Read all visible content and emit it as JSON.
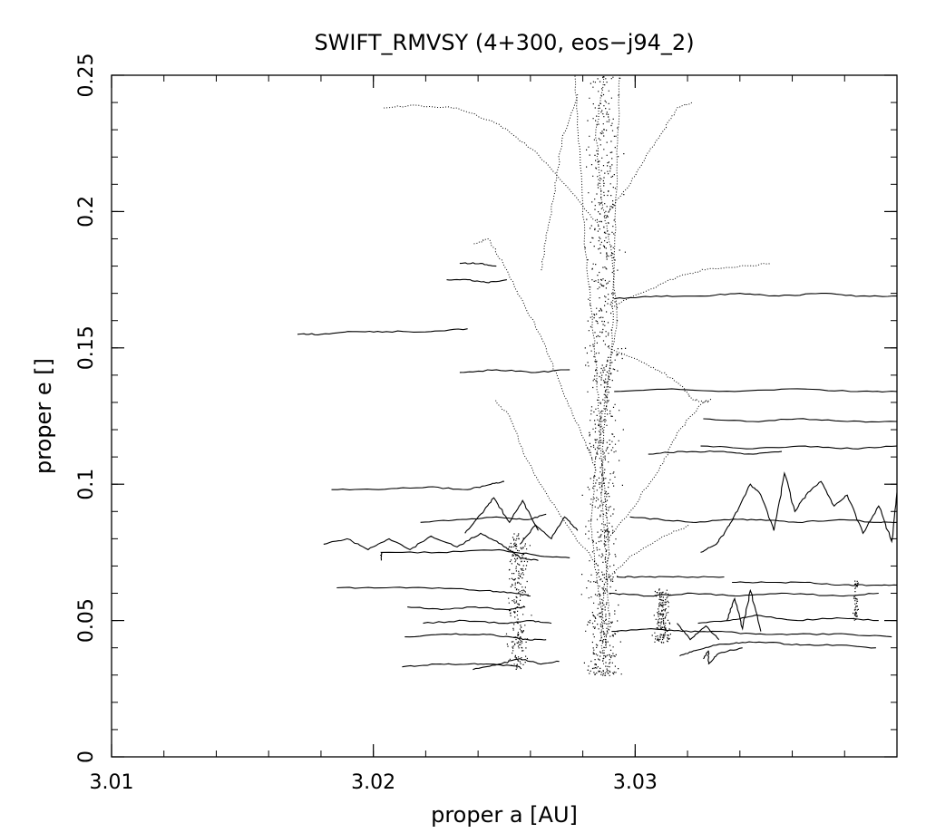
{
  "chart_data": {
    "type": "line",
    "title": "SWIFT_RMVSY (4+300, eos−j94_2)",
    "xlabel": "proper a [AU]",
    "ylabel": "proper e []",
    "xlim": [
      3.01,
      3.04
    ],
    "ylim": [
      0,
      0.25
    ],
    "x_ticks": [
      {
        "value": 3.01,
        "label": "3.01"
      },
      {
        "value": 3.02,
        "label": "3.02"
      },
      {
        "value": 3.03,
        "label": "3.03"
      }
    ],
    "y_ticks": [
      {
        "value": 0,
        "label": "0"
      },
      {
        "value": 0.05,
        "label": "0.05"
      },
      {
        "value": 0.1,
        "label": "0.1"
      },
      {
        "value": 0.15,
        "label": "0.15"
      },
      {
        "value": 0.2,
        "label": "0.2"
      },
      {
        "value": 0.25,
        "label": "0.25"
      }
    ],
    "x_minor_step": 0.002,
    "y_minor_step": 0.01,
    "grid": false,
    "legend": "none",
    "series": [
      {
        "style": "dotted",
        "x": [
          3.0288,
          3.0287,
          3.0288,
          3.029,
          3.0289,
          3.0287,
          3.0286,
          3.0284,
          3.0281,
          3.0279,
          3.0277
        ],
        "y": [
          0.034,
          0.045,
          0.06,
          0.075,
          0.09,
          0.11,
          0.13,
          0.155,
          0.185,
          0.22,
          0.25
        ]
      },
      {
        "style": "dotted",
        "x": [
          3.0288,
          3.029,
          3.0289,
          3.0287,
          3.0288,
          3.0291,
          3.0292,
          3.0293,
          3.0294
        ],
        "y": [
          0.036,
          0.05,
          0.07,
          0.095,
          0.12,
          0.15,
          0.18,
          0.215,
          0.25
        ]
      },
      {
        "style": "dotted",
        "x": [
          3.0289,
          3.0286,
          3.0283,
          3.0285,
          3.0289,
          3.0293,
          3.0291,
          3.0287,
          3.0285,
          3.0288
        ],
        "y": [
          0.04,
          0.06,
          0.085,
          0.11,
          0.135,
          0.16,
          0.185,
          0.205,
          0.23,
          0.25
        ]
      },
      {
        "style": "dotted",
        "x": [
          3.0285,
          3.0279,
          3.0272,
          3.0266,
          3.0258,
          3.025,
          3.0244,
          3.0238
        ],
        "y": [
          0.105,
          0.12,
          0.135,
          0.15,
          0.165,
          0.18,
          0.19,
          0.188
        ]
      },
      {
        "style": "dotted",
        "x": [
          3.0286,
          3.0275,
          3.0262,
          3.0248,
          3.0232,
          3.0214,
          3.0204
        ],
        "y": [
          0.195,
          0.208,
          0.222,
          0.232,
          0.238,
          0.239,
          0.238
        ]
      },
      {
        "style": "dotted",
        "x": [
          3.0291,
          3.0302,
          3.0316,
          3.0328,
          3.034,
          3.0352
        ],
        "y": [
          0.165,
          0.17,
          0.176,
          0.179,
          0.18,
          0.181
        ]
      },
      {
        "style": "dotted",
        "x": [
          3.029,
          3.0302,
          3.0312,
          3.0318,
          3.0322,
          3.0328
        ],
        "y": [
          0.15,
          0.145,
          0.14,
          0.136,
          0.131,
          0.13
        ]
      },
      {
        "style": "dotted",
        "x": [
          3.0288,
          3.0298,
          3.0309,
          3.0317,
          3.0326,
          3.0329
        ],
        "y": [
          0.078,
          0.09,
          0.105,
          0.12,
          0.13,
          0.131
        ]
      },
      {
        "style": "dotted",
        "x": [
          3.0286,
          3.0276,
          3.0267,
          3.0258,
          3.0252,
          3.0246
        ],
        "y": [
          0.07,
          0.082,
          0.095,
          0.11,
          0.125,
          0.131
        ]
      },
      {
        "style": "dotted",
        "x": [
          3.029,
          3.0298,
          3.0304,
          3.0311,
          3.0316,
          3.0322
        ],
        "y": [
          0.2,
          0.21,
          0.22,
          0.23,
          0.238,
          0.24
        ]
      },
      {
        "style": "dotted",
        "x": [
          3.0278,
          3.0272,
          3.0269,
          3.0266,
          3.0264
        ],
        "y": [
          0.243,
          0.226,
          0.206,
          0.19,
          0.178
        ]
      },
      {
        "style": "dotted",
        "x": [
          3.0289,
          3.0299,
          3.0311,
          3.0321
        ],
        "y": [
          0.065,
          0.074,
          0.081,
          0.085
        ]
      },
      {
        "style": "solid",
        "x": [
          3.0181,
          3.019,
          3.0198,
          3.0206,
          3.0214,
          3.0222,
          3.0232,
          3.0241,
          3.0249,
          3.0256,
          3.0263
        ],
        "y": [
          0.078,
          0.08,
          0.076,
          0.08,
          0.076,
          0.081,
          0.077,
          0.082,
          0.078,
          0.073,
          0.072
        ]
      },
      {
        "style": "solid",
        "x": [
          3.0203,
          3.0203,
          3.0225,
          3.0248,
          3.0262,
          3.0275
        ],
        "y": [
          0.072,
          0.075,
          0.075,
          0.076,
          0.074,
          0.073
        ]
      },
      {
        "style": "solid",
        "x": [
          3.0186,
          3.0205,
          3.0225,
          3.0243,
          3.0254,
          3.026
        ],
        "y": [
          0.062,
          0.062,
          0.062,
          0.061,
          0.06,
          0.059
        ]
      },
      {
        "style": "solid",
        "x": [
          3.0212,
          3.0228,
          3.0242,
          3.0252,
          3.0259,
          3.0266
        ],
        "y": [
          0.044,
          0.045,
          0.045,
          0.044,
          0.043,
          0.043
        ]
      },
      {
        "style": "solid",
        "x": [
          3.0211,
          3.0224,
          3.0236,
          3.0246,
          3.0256
        ],
        "y": [
          0.033,
          0.034,
          0.034,
          0.034,
          0.033
        ]
      },
      {
        "style": "solid",
        "x": [
          3.0238,
          3.0248,
          3.0256,
          3.0264,
          3.0271
        ],
        "y": [
          0.032,
          0.034,
          0.036,
          0.034,
          0.035
        ]
      },
      {
        "style": "solid",
        "x": [
          3.0219,
          3.0235,
          3.025,
          3.026,
          3.0268
        ],
        "y": [
          0.049,
          0.05,
          0.049,
          0.05,
          0.049
        ]
      },
      {
        "style": "solid",
        "x": [
          3.0213,
          3.0226,
          3.0239,
          3.0251,
          3.0258
        ],
        "y": [
          0.055,
          0.054,
          0.055,
          0.054,
          0.055
        ]
      },
      {
        "style": "solid",
        "x": [
          3.0218,
          3.0232,
          3.0247,
          3.0259,
          3.0266
        ],
        "y": [
          0.086,
          0.087,
          0.088,
          0.087,
          0.089
        ]
      },
      {
        "style": "solid",
        "x": [
          3.0184,
          3.0202,
          3.0221,
          3.0236,
          3.0245,
          3.025
        ],
        "y": [
          0.098,
          0.098,
          0.099,
          0.098,
          0.1,
          0.101
        ]
      },
      {
        "style": "solid",
        "x": [
          3.0235,
          3.0241,
          3.0246,
          3.0252,
          3.0257,
          3.0263
        ],
        "y": [
          0.082,
          0.089,
          0.095,
          0.086,
          0.094,
          0.083
        ]
      },
      {
        "style": "solid",
        "x": [
          3.0256,
          3.0262,
          3.0268,
          3.0273,
          3.0278
        ],
        "y": [
          0.078,
          0.085,
          0.08,
          0.088,
          0.083
        ]
      },
      {
        "style": "solid",
        "x": [
          3.0171,
          3.018,
          3.0192,
          3.0205,
          3.0222,
          3.0236
        ],
        "y": [
          0.155,
          0.155,
          0.156,
          0.156,
          0.156,
          0.157
        ]
      },
      {
        "style": "solid",
        "x": [
          3.0233,
          3.0247,
          3.0262,
          3.0275
        ],
        "y": [
          0.141,
          0.142,
          0.141,
          0.142
        ]
      },
      {
        "style": "solid",
        "x": [
          3.0228,
          3.0236,
          3.0243,
          3.0251
        ],
        "y": [
          0.175,
          0.175,
          0.174,
          0.175
        ]
      },
      {
        "style": "solid",
        "x": [
          3.0233,
          3.0241,
          3.0247
        ],
        "y": [
          0.181,
          0.181,
          0.18
        ]
      },
      {
        "style": "solid",
        "x": [
          3.0292,
          3.0308,
          3.0325,
          3.034,
          3.0355,
          3.0371,
          3.0386,
          3.04
        ],
        "y": [
          0.168,
          0.169,
          0.169,
          0.17,
          0.169,
          0.17,
          0.169,
          0.169
        ]
      },
      {
        "style": "solid",
        "x": [
          3.0292,
          3.0314,
          3.0338,
          3.0362,
          3.0385,
          3.04
        ],
        "y": [
          0.134,
          0.135,
          0.134,
          0.135,
          0.134,
          0.134
        ]
      },
      {
        "style": "solid",
        "x": [
          3.0326,
          3.0345,
          3.0362,
          3.0381,
          3.04
        ],
        "y": [
          0.124,
          0.123,
          0.124,
          0.123,
          0.123
        ]
      },
      {
        "style": "solid",
        "x": [
          3.0325,
          3.0345,
          3.0365,
          3.0383,
          3.04
        ],
        "y": [
          0.114,
          0.113,
          0.114,
          0.113,
          0.114
        ]
      },
      {
        "style": "solid",
        "x": [
          3.0305,
          3.0318,
          3.0332,
          3.0345,
          3.0356
        ],
        "y": [
          0.111,
          0.112,
          0.112,
          0.111,
          0.112
        ]
      },
      {
        "style": "solid",
        "x": [
          3.0325,
          3.0331,
          3.0336,
          3.0339,
          3.0344,
          3.0348,
          3.0353,
          3.0357,
          3.0361,
          3.0366,
          3.0371,
          3.0376,
          3.0381,
          3.0387,
          3.0393,
          3.0398,
          3.04
        ],
        "y": [
          0.075,
          0.078,
          0.085,
          0.09,
          0.1,
          0.096,
          0.083,
          0.104,
          0.09,
          0.097,
          0.101,
          0.092,
          0.096,
          0.082,
          0.092,
          0.079,
          0.097
        ]
      },
      {
        "style": "solid",
        "x": [
          3.0298,
          3.031,
          3.0322,
          3.0334,
          3.0348,
          3.0362,
          3.0378,
          3.0393,
          3.04
        ],
        "y": [
          0.088,
          0.087,
          0.086,
          0.087,
          0.087,
          0.086,
          0.087,
          0.086,
          0.086
        ]
      },
      {
        "style": "solid",
        "x": [
          3.0293,
          3.0304,
          3.0318,
          3.0334
        ],
        "y": [
          0.066,
          0.066,
          0.066,
          0.066
        ]
      },
      {
        "style": "solid",
        "x": [
          3.0335,
          3.0338,
          3.0341,
          3.0344,
          3.0348
        ],
        "y": [
          0.05,
          0.058,
          0.047,
          0.061,
          0.046
        ]
      },
      {
        "style": "solid",
        "x": [
          3.0337,
          3.035,
          3.0365,
          3.0378,
          3.0392,
          3.04
        ],
        "y": [
          0.064,
          0.064,
          0.064,
          0.063,
          0.063,
          0.063
        ]
      },
      {
        "style": "solid",
        "x": [
          3.029,
          3.0305,
          3.0322,
          3.034,
          3.0358,
          3.0378,
          3.0393
        ],
        "y": [
          0.06,
          0.059,
          0.06,
          0.059,
          0.06,
          0.059,
          0.06
        ]
      },
      {
        "style": "solid",
        "x": [
          3.0291,
          3.0306,
          3.0318,
          3.0331,
          3.0346,
          3.0362,
          3.0381,
          3.0398
        ],
        "y": [
          0.046,
          0.047,
          0.046,
          0.046,
          0.045,
          0.045,
          0.045,
          0.044
        ]
      },
      {
        "style": "solid",
        "x": [
          3.0324,
          3.0336,
          3.0346,
          3.0362,
          3.0377,
          3.0393
        ],
        "y": [
          0.049,
          0.05,
          0.052,
          0.05,
          0.051,
          0.05
        ]
      },
      {
        "style": "solid",
        "x": [
          3.0317,
          3.0323,
          3.0331,
          3.0341,
          3.0351,
          3.0363,
          3.0377,
          3.0392
        ],
        "y": [
          0.037,
          0.039,
          0.041,
          0.042,
          0.042,
          0.041,
          0.041,
          0.04
        ]
      },
      {
        "style": "solid",
        "x": [
          3.0316,
          3.0321,
          3.0327,
          3.0332
        ],
        "y": [
          0.049,
          0.043,
          0.048,
          0.043
        ]
      },
      {
        "style": "solid",
        "x": [
          3.0326,
          3.0328,
          3.0328,
          3.0332,
          3.0341
        ],
        "y": [
          0.036,
          0.039,
          0.034,
          0.038,
          0.04
        ]
      }
    ],
    "scatter_clusters": [
      {
        "x_center": 3.02875,
        "x_spread": 0.0012,
        "e_min": 0.03,
        "e_max": 0.25,
        "count": 900
      },
      {
        "x_center": 3.0255,
        "x_spread": 0.0007,
        "e_min": 0.032,
        "e_max": 0.082,
        "count": 250
      },
      {
        "x_center": 3.031,
        "x_spread": 0.0006,
        "e_min": 0.042,
        "e_max": 0.062,
        "count": 160
      },
      {
        "x_center": 3.0384,
        "x_spread": 0.0002,
        "e_min": 0.05,
        "e_max": 0.065,
        "count": 50
      }
    ]
  }
}
